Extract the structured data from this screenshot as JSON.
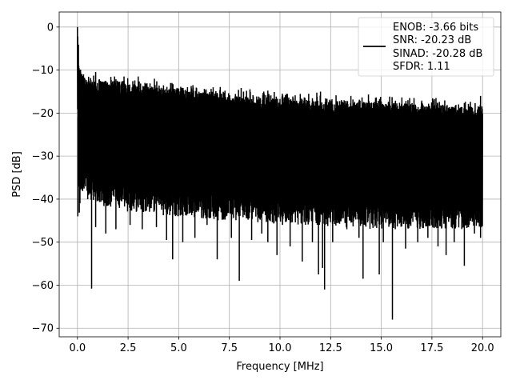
{
  "chart_data": {
    "type": "line",
    "title": "",
    "xlabel": "Frequency [MHz]",
    "ylabel": "PSD [dB]",
    "xlim": [
      -0.9,
      20.9
    ],
    "ylim": [
      -72,
      3.5
    ],
    "xticks": [
      0.0,
      2.5,
      5.0,
      7.5,
      10.0,
      12.5,
      15.0,
      17.5,
      20.0
    ],
    "xtick_labels": [
      "0.0",
      "2.5",
      "5.0",
      "7.5",
      "10.0",
      "12.5",
      "15.0",
      "17.5",
      "20.0"
    ],
    "yticks": [
      0,
      -10,
      -20,
      -30,
      -40,
      -50,
      -60,
      -70
    ],
    "ytick_labels": [
      "0",
      "−10",
      "−20",
      "−30",
      "−40",
      "−50",
      "−60",
      "−70"
    ],
    "grid": true,
    "legend_position": "top-right",
    "legend": {
      "lines": [
        "ENOB: -3.66 bits",
        "SNR: -20.23 dB",
        "SINAD: -20.28 dB",
        "SFDR: 1.11"
      ]
    },
    "series": [
      {
        "color": "#000000",
        "x": [
          0.0,
          0.02,
          0.04,
          0.06,
          0.08,
          0.1,
          0.13,
          0.16,
          0.2,
          0.25,
          0.3,
          0.38,
          0.5,
          0.7,
          1.0,
          1.5,
          2.0,
          2.5,
          3.0,
          3.5,
          4.0,
          4.5,
          5.0,
          5.5,
          6.0,
          6.5,
          7.0,
          7.5,
          8.0,
          8.5,
          9.0,
          9.5,
          10.0,
          10.5,
          11.0,
          11.5,
          12.0,
          12.5,
          13.0,
          13.5,
          14.0,
          14.5,
          15.0,
          15.5,
          16.0,
          16.5,
          17.0,
          17.5,
          18.0,
          18.5,
          19.0,
          19.5,
          20.0
        ],
        "upper": [
          0,
          -1,
          -3,
          -6,
          -8,
          -9,
          -10,
          -10.5,
          -11,
          -11,
          -11.3,
          -11.5,
          -11.7,
          -12,
          -12.3,
          -12.7,
          -13,
          -13.3,
          -13.5,
          -13.8,
          -14,
          -14.3,
          -14.5,
          -14.8,
          -15,
          -15.2,
          -15.4,
          -15.6,
          -15.8,
          -16,
          -16.2,
          -16.4,
          -16.5,
          -16.6,
          -16.8,
          -16.9,
          -17,
          -17.1,
          -17.2,
          -17.3,
          -17.4,
          -17.5,
          -17.6,
          -17.7,
          -17.8,
          -17.9,
          -18,
          -18.1,
          -18.2,
          -18.3,
          -18.4,
          -18.5,
          -18.6
        ],
        "lower": [
          -20,
          -25,
          -30,
          -36,
          -40,
          -44,
          -38,
          -36,
          -35,
          -35,
          -36,
          -37,
          -37,
          -38,
          -38,
          -39,
          -39,
          -40,
          -40,
          -40,
          -40.5,
          -41,
          -41,
          -41,
          -41.5,
          -41.5,
          -42,
          -42,
          -42,
          -42,
          -42.5,
          -42.5,
          -43,
          -43,
          -43,
          -43,
          -43,
          -43.5,
          -43.5,
          -43.5,
          -43.5,
          -44,
          -44,
          -44,
          -44,
          -44,
          -44,
          -44,
          -44,
          -44,
          -44,
          -44,
          -44
        ],
        "spikes": [
          {
            "x": 0.02,
            "y": -44
          },
          {
            "x": 0.7,
            "y": -60.8
          },
          {
            "x": 0.9,
            "y": -46.5
          },
          {
            "x": 1.4,
            "y": -48
          },
          {
            "x": 1.9,
            "y": -47
          },
          {
            "x": 2.6,
            "y": -46
          },
          {
            "x": 3.2,
            "y": -47
          },
          {
            "x": 3.9,
            "y": -46.5
          },
          {
            "x": 4.4,
            "y": -49.5
          },
          {
            "x": 4.7,
            "y": -54
          },
          {
            "x": 5.2,
            "y": -50
          },
          {
            "x": 5.8,
            "y": -49
          },
          {
            "x": 6.4,
            "y": -46
          },
          {
            "x": 6.9,
            "y": -54
          },
          {
            "x": 7.6,
            "y": -49
          },
          {
            "x": 7.99,
            "y": -59
          },
          {
            "x": 8.6,
            "y": -49.5
          },
          {
            "x": 9.1,
            "y": -48
          },
          {
            "x": 9.4,
            "y": -50
          },
          {
            "x": 9.85,
            "y": -53
          },
          {
            "x": 10.5,
            "y": -51
          },
          {
            "x": 11.1,
            "y": -54.5
          },
          {
            "x": 11.6,
            "y": -50
          },
          {
            "x": 11.9,
            "y": -57.5
          },
          {
            "x": 12.1,
            "y": -56
          },
          {
            "x": 12.2,
            "y": -61
          },
          {
            "x": 12.6,
            "y": -50
          },
          {
            "x": 13.3,
            "y": -47
          },
          {
            "x": 13.9,
            "y": -49
          },
          {
            "x": 14.1,
            "y": -58.5
          },
          {
            "x": 14.9,
            "y": -57.5
          },
          {
            "x": 15.1,
            "y": -50
          },
          {
            "x": 15.55,
            "y": -68
          },
          {
            "x": 16.2,
            "y": -51.5
          },
          {
            "x": 16.8,
            "y": -50
          },
          {
            "x": 17.3,
            "y": -49
          },
          {
            "x": 17.8,
            "y": -51
          },
          {
            "x": 18.2,
            "y": -53
          },
          {
            "x": 18.6,
            "y": -50
          },
          {
            "x": 19.1,
            "y": -55.5
          },
          {
            "x": 19.6,
            "y": -48
          },
          {
            "x": 19.9,
            "y": -49
          }
        ],
        "peaks": [
          {
            "x": 0.15,
            "y": -10
          },
          {
            "x": 0.3,
            "y": -11
          },
          {
            "x": 2.3,
            "y": -11.5
          },
          {
            "x": 3.0,
            "y": -11.5
          },
          {
            "x": 3.8,
            "y": -12
          },
          {
            "x": 4.6,
            "y": -13
          },
          {
            "x": 5.7,
            "y": -13.5
          },
          {
            "x": 6.7,
            "y": -14
          },
          {
            "x": 8.2,
            "y": -15
          },
          {
            "x": 9.2,
            "y": -15
          },
          {
            "x": 12.0,
            "y": -15
          },
          {
            "x": 13.5,
            "y": -16
          },
          {
            "x": 16.4,
            "y": -16.5
          },
          {
            "x": 17.7,
            "y": -16.5
          },
          {
            "x": 19.9,
            "y": -16
          }
        ]
      }
    ]
  }
}
